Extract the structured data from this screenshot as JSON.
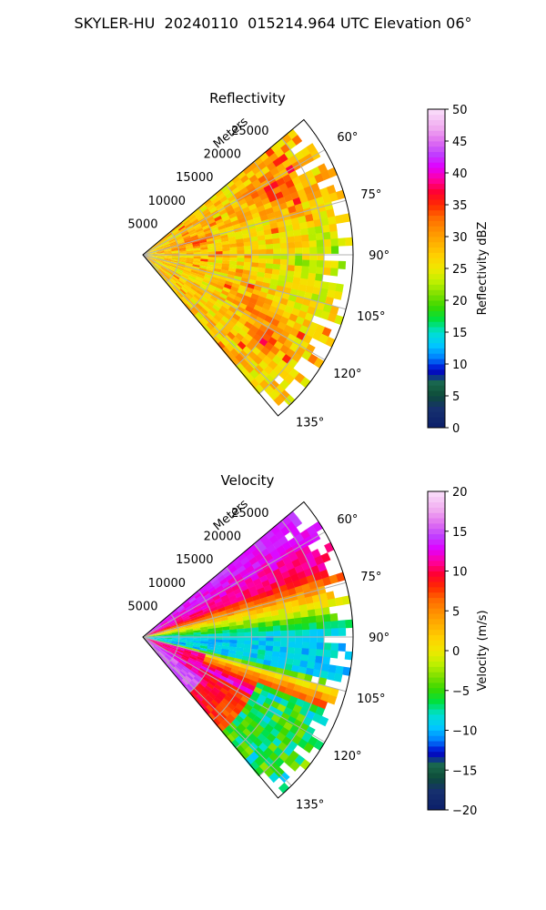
{
  "figure_title": "SKYLER-HU  20240110  015214.964 UTC Elevation 06°",
  "chart_data": [
    {
      "type": "heatmap",
      "subtype": "radar-sector (PPI)",
      "title": "Reflectivity",
      "range_axis_label": "Meters",
      "range_ticks": [
        5000,
        10000,
        15000,
        20000,
        25000
      ],
      "azimuth_ticks_deg": [
        60,
        75,
        90,
        105,
        120,
        135
      ],
      "azimuth_range_deg": [
        50,
        140
      ],
      "range_max_m": 29000,
      "grid": true,
      "colorbar": {
        "label": "Reflectivity dBZ",
        "min": 0,
        "max": 50,
        "ticks": [
          0,
          5,
          10,
          15,
          20,
          25,
          30,
          35,
          40,
          45,
          50
        ],
        "position": "right"
      },
      "field_summary": {
        "dominant_range_dbz": [
          25,
          35
        ],
        "max_dbz": 38,
        "high_cells": [
          {
            "azimuth_deg": 62,
            "range_m": 20000,
            "dbz": 36
          },
          {
            "azimuth_deg": 121,
            "range_m": 20000,
            "dbz": 36
          },
          {
            "azimuth_deg": 75,
            "range_m": 7000,
            "dbz": 34
          }
        ],
        "low_region": {
          "azimuth_deg": [
            88,
            102
          ],
          "range_m": [
            20000,
            28000
          ],
          "dbz": 22
        }
      }
    },
    {
      "type": "heatmap",
      "subtype": "radar-sector (PPI)",
      "title": "Velocity",
      "range_axis_label": "Meters",
      "range_ticks": [
        5000,
        10000,
        15000,
        20000,
        25000
      ],
      "azimuth_ticks_deg": [
        60,
        75,
        90,
        105,
        120,
        135
      ],
      "azimuth_range_deg": [
        50,
        140
      ],
      "range_max_m": 29000,
      "grid": true,
      "colorbar": {
        "label": "Velocity (m/s)",
        "min": -20,
        "max": 20,
        "ticks": [
          -20,
          -15,
          -10,
          -5,
          0,
          5,
          10,
          15,
          20
        ],
        "position": "right"
      },
      "field_summary": {
        "min_ms": -12,
        "max_ms": 16,
        "features": [
          {
            "azimuth_deg": [
              50,
              68
            ],
            "velocity_ms": 14
          },
          {
            "azimuth_deg": [
              88,
              102
            ],
            "velocity_ms": -9
          },
          {
            "azimuth_deg": [
              118,
              140
            ],
            "velocity_ms": 15
          }
        ]
      }
    }
  ],
  "colors": {
    "ring": "#000000",
    "grid": "#b0b0b0",
    "background": "#ffffff"
  }
}
